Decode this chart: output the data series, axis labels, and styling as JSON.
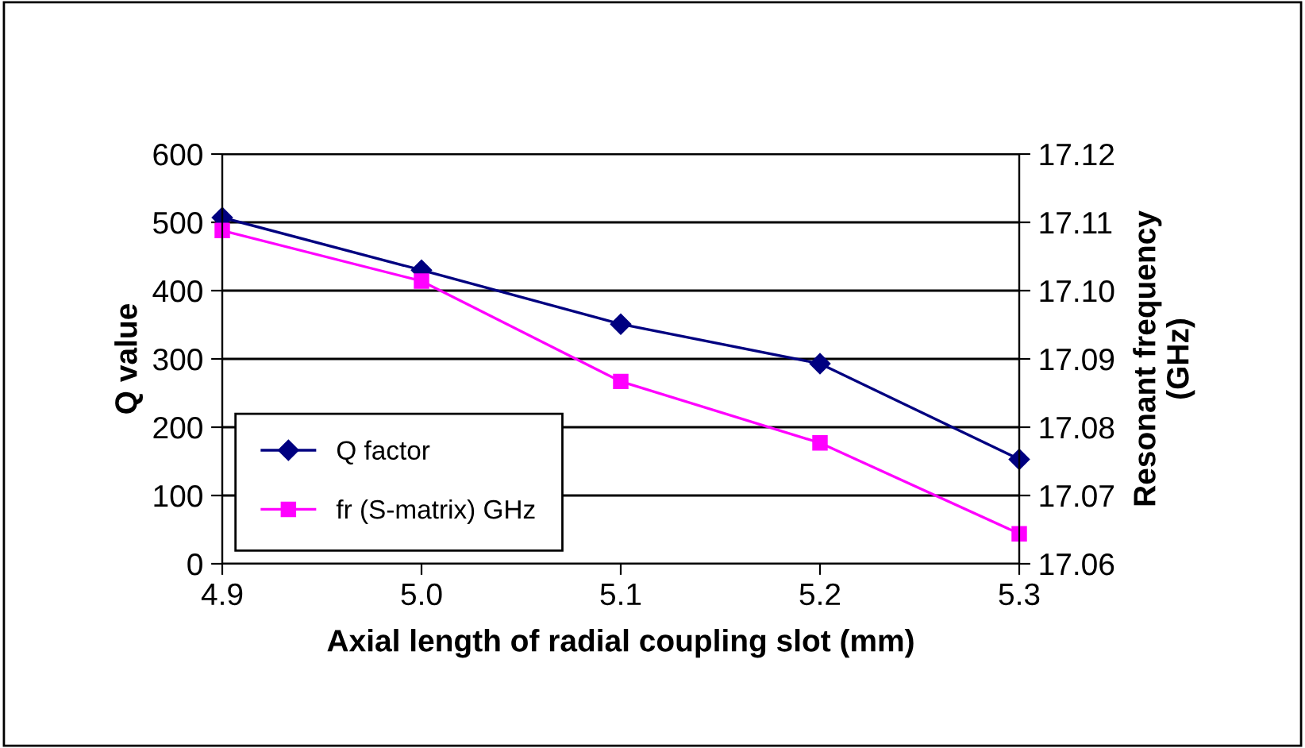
{
  "chart_data": {
    "type": "line",
    "xlabel": "Axial length of radial coupling slot (mm)",
    "ylabel": "Q value",
    "y2label": "Resonant frequency\n(GHz)",
    "categories": [
      "4.9",
      "5.0",
      "5.1",
      "5.2",
      "5.3"
    ],
    "series": [
      {
        "name": "Q factor",
        "color": "#000080",
        "marker": "diamond",
        "values": [
          507,
          430,
          351,
          293,
          153
        ]
      },
      {
        "name": "fr (S-matrix) GHz",
        "color": "#ff00ff",
        "marker": "square",
        "axis": "y2",
        "values": [
          17.1088,
          17.1014,
          17.0867,
          17.0777,
          17.0644
        ]
      }
    ],
    "ylim": [
      0,
      600
    ],
    "yticks": [
      0,
      100,
      200,
      300,
      400,
      500,
      600
    ],
    "y2lim": [
      17.06,
      17.12
    ],
    "y2ticks": [
      17.06,
      17.07,
      17.08,
      17.09,
      {
        "value": 17.1,
        "label": "17.10"
      },
      17.11,
      17.12
    ],
    "grid": "y",
    "legend": "bottom left"
  }
}
